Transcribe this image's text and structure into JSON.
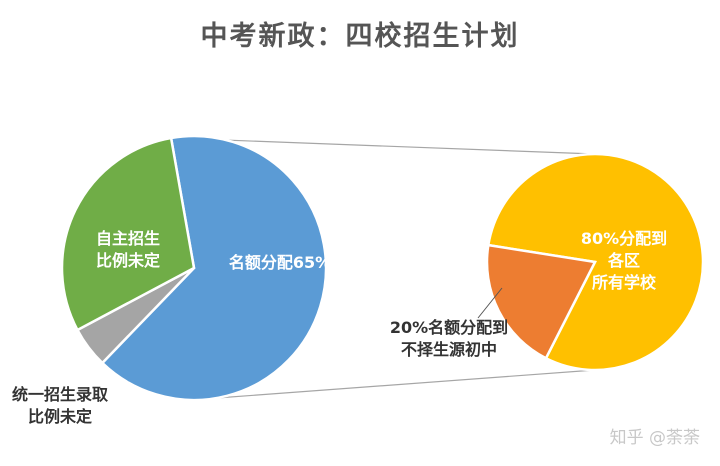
{
  "chart_data": [
    {
      "type": "pie",
      "title": "中考新政：四校招生计划",
      "slices": [
        {
          "label": "名额分配65%",
          "value": 65,
          "color": "#5b9bd5"
        },
        {
          "label": "统一招生录取\n比例未定",
          "value": 5,
          "color": "#a5a5a5"
        },
        {
          "label": "自主招生\n比例未定",
          "value": 30,
          "color": "#70ad47"
        }
      ]
    },
    {
      "type": "pie",
      "breakout_of": "名额分配65%",
      "slices": [
        {
          "label": "80%分配到\n各区\n所有学校",
          "value": 80,
          "color": "#ffc000"
        },
        {
          "label": "20%名额分配到\n不择生源初中",
          "value": 20,
          "color": "#ed7d31"
        }
      ]
    }
  ],
  "watermark": "知乎 @荼荼"
}
